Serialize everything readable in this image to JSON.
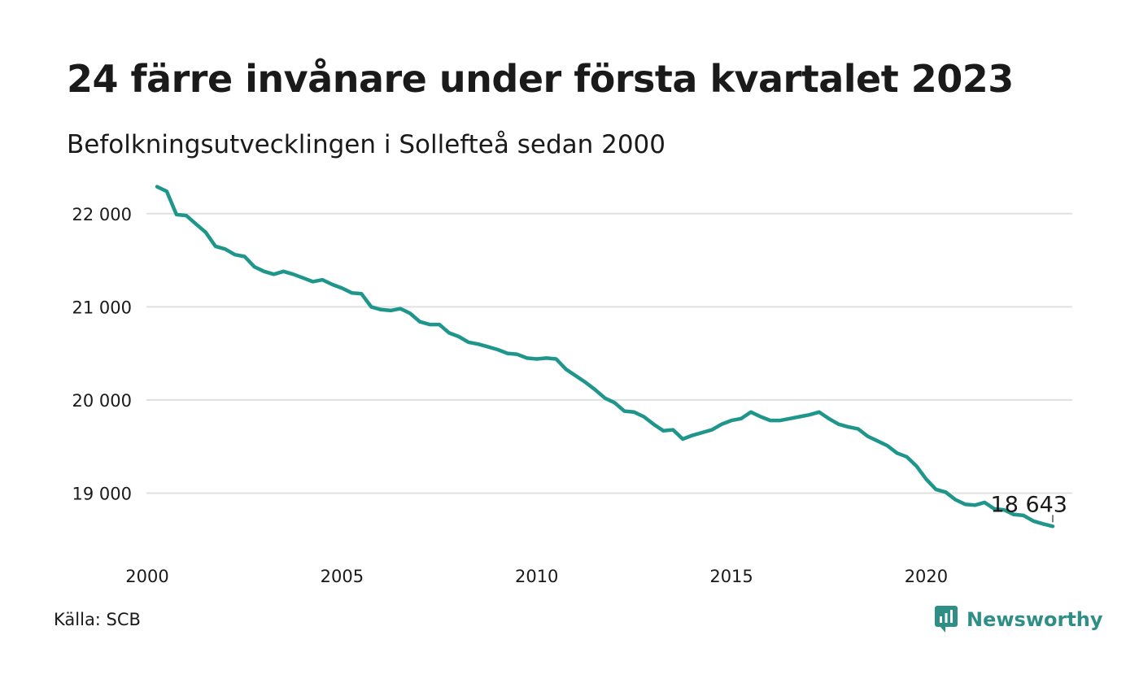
{
  "header": {
    "title": "24 färre invånare under första kvartalet 2023",
    "subtitle": "Befolkningsutvecklingen i Sollefteå sedan 2000"
  },
  "footer": {
    "source": "Källa: SCB",
    "brand": "Newsworthy"
  },
  "colors": {
    "line": "#1f968b",
    "grid": "#e0e0e0",
    "text": "#1a1a1a",
    "brand": "#2f8f86"
  },
  "chart_data": {
    "type": "line",
    "title": "24 färre invånare under första kvartalet 2023",
    "subtitle": "Befolkningsutvecklingen i Sollefteå sedan 2000",
    "xlabel": "",
    "ylabel": "",
    "x_ticks": [
      "2000",
      "2005",
      "2010",
      "2015",
      "2020"
    ],
    "x_tick_values": [
      2000,
      2005,
      2010,
      2015,
      2020
    ],
    "y_ticks": [
      "19 000",
      "20 000",
      "21 000",
      "22 000"
    ],
    "y_tick_values": [
      19000,
      20000,
      21000,
      22000
    ],
    "xlim": [
      2000,
      2023.25
    ],
    "ylim": [
      18550,
      22330
    ],
    "grid": true,
    "legend": "none",
    "end_label": "18 643",
    "series": [
      {
        "x": [
          2000.25,
          2000.5,
          2000.75,
          2001.0,
          2001.25,
          2001.5,
          2001.75,
          2002.0,
          2002.25,
          2002.5,
          2002.75,
          2003.0,
          2003.25,
          2003.5,
          2003.75,
          2004.0,
          2004.25,
          2004.5,
          2004.75,
          2005.0,
          2005.25,
          2005.5,
          2005.75,
          2006.0,
          2006.25,
          2006.5,
          2006.75,
          2007.0,
          2007.25,
          2007.5,
          2007.75,
          2008.0,
          2008.25,
          2008.5,
          2008.75,
          2009.0,
          2009.25,
          2009.5,
          2009.75,
          2010.0,
          2010.25,
          2010.5,
          2010.75,
          2011.0,
          2011.25,
          2011.5,
          2011.75,
          2012.0,
          2012.25,
          2012.5,
          2012.75,
          2013.0,
          2013.25,
          2013.5,
          2013.75,
          2014.0,
          2014.25,
          2014.5,
          2014.75,
          2015.0,
          2015.25,
          2015.5,
          2015.75,
          2016.0,
          2016.25,
          2016.5,
          2016.75,
          2017.0,
          2017.25,
          2017.5,
          2017.75,
          2018.0,
          2018.25,
          2018.5,
          2018.75,
          2019.0,
          2019.25,
          2019.5,
          2019.75,
          2020.0,
          2020.25,
          2020.5,
          2020.75,
          2021.0,
          2021.25,
          2021.5,
          2021.75,
          2022.0,
          2022.25,
          2022.5,
          2022.75,
          2023.0,
          2023.25
        ],
        "values": [
          22290,
          22240,
          21990,
          21980,
          21890,
          21800,
          21650,
          21620,
          21560,
          21540,
          21430,
          21380,
          21350,
          21380,
          21350,
          21310,
          21270,
          21290,
          21240,
          21200,
          21150,
          21140,
          21000,
          20970,
          20960,
          20980,
          20930,
          20840,
          20810,
          20810,
          20720,
          20680,
          20620,
          20600,
          20570,
          20540,
          20500,
          20490,
          20450,
          20440,
          20450,
          20440,
          20330,
          20260,
          20190,
          20110,
          20020,
          19970,
          19880,
          19870,
          19820,
          19740,
          19670,
          19680,
          19580,
          19620,
          19650,
          19680,
          19740,
          19780,
          19800,
          19870,
          19820,
          19780,
          19780,
          19800,
          19820,
          19840,
          19870,
          19800,
          19740,
          19710,
          19690,
          19610,
          19560,
          19510,
          19430,
          19390,
          19290,
          19150,
          19040,
          19010,
          18930,
          18880,
          18870,
          18900,
          18830,
          18820,
          18770,
          18760,
          18700,
          18670,
          18643
        ]
      }
    ]
  }
}
